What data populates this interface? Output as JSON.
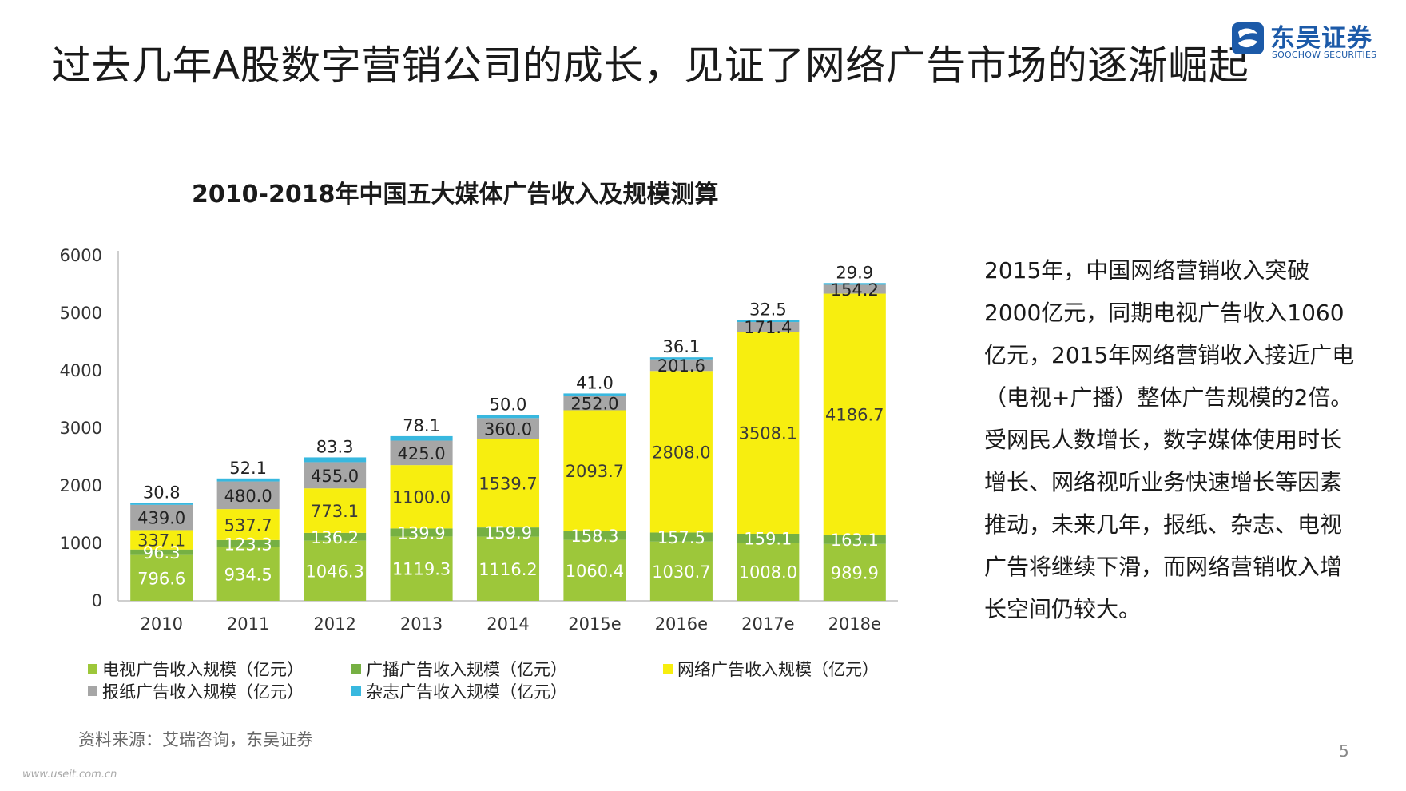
{
  "slide": {
    "title": "过去几年A股数字营销公司的成长，见证了网络广告市场的逐渐崛起",
    "page_number": "5",
    "source": "资料来源：艾瑞咨询，东吴证券",
    "watermark": "www.useit.com.cn"
  },
  "logo": {
    "name": "东吴证券",
    "subtitle": "SOOCHOW SECURITIES",
    "accent_color": "#1c5aa8",
    "mark_icon": "scs-logo-icon"
  },
  "side_text": "2015年，中国网络营销收入突破2000亿元，同期电视广告收入1060亿元，2015年网络营销收入接近广电（电视+广播）整体广告规模的2倍。受网民人数增长，数字媒体使用时长增长、网络视听业务快速增长等因素推动，未来几年，报纸、杂志、电视广告将继续下滑，而网络营销收入增长空间仍较大。",
  "chart_data": {
    "type": "bar",
    "stacked": true,
    "title": "2010-2018年中国五大媒体广告收入及规模测算",
    "categories": [
      "2010",
      "2011",
      "2012",
      "2013",
      "2014",
      "2015e",
      "2016e",
      "2017e",
      "2018e"
    ],
    "ylim": [
      0,
      6000
    ],
    "yticks": [
      "0",
      "1000",
      "2000",
      "3000",
      "4000",
      "5000",
      "6000"
    ],
    "xlabel": "",
    "ylabel": "",
    "grid": false,
    "legend_position": "bottom",
    "series": [
      {
        "name": "电视广告收入规模（亿元）",
        "color": "#9dc73a",
        "label_color": "#ffffff",
        "values": [
          796.6,
          934.5,
          1046.3,
          1119.3,
          1116.2,
          1060.4,
          1030.7,
          1008.0,
          989.9
        ],
        "labels": [
          "796.6",
          "934.5",
          "1046.3",
          "1119.3",
          "1116.2",
          "1060.4",
          "1030.7",
          "1008.0",
          "989.9"
        ]
      },
      {
        "name": "广播广告收入规模（亿元）",
        "color": "#76b043",
        "label_color": "#ffffff",
        "values": [
          96.3,
          123.3,
          136.2,
          139.9,
          159.9,
          158.3,
          157.5,
          159.1,
          163.1
        ],
        "labels": [
          "96.3",
          "123.3",
          "136.2",
          "139.9",
          "159.9",
          "158.3",
          "157.5",
          "159.1",
          "163.1"
        ]
      },
      {
        "name": "网络广告收入规模（亿元）",
        "color": "#f7ee0f",
        "label_color": "#3a3a3a",
        "values": [
          337.1,
          537.7,
          773.1,
          1100.0,
          1539.7,
          2093.7,
          2808.0,
          3508.1,
          4186.7
        ],
        "labels": [
          "337.1",
          "537.7",
          "773.1",
          "1100.0",
          "1539.7",
          "2093.7",
          "2808.0",
          "3508.1",
          "4186.7"
        ]
      },
      {
        "name": "报纸广告收入规模（亿元）",
        "color": "#a6a6a6",
        "label_color": "#222222",
        "values": [
          439.0,
          480.0,
          455.0,
          425.0,
          360.0,
          252.0,
          201.6,
          171.4,
          154.2
        ],
        "labels": [
          "439.0",
          "480.0",
          "455.0",
          "425.0",
          "360.0",
          "252.0",
          "201.6",
          "171.4",
          "154.2"
        ]
      },
      {
        "name": "杂志广告收入规模（亿元）",
        "color": "#38b8df",
        "label_color": "#222222",
        "values": [
          30.8,
          52.1,
          83.3,
          78.1,
          50.0,
          41.0,
          36.1,
          32.5,
          29.9
        ],
        "labels": [
          "30.8",
          "52.1",
          "83.3",
          "78.1",
          "50.0",
          "41.0",
          "36.1",
          "32.5",
          "29.9"
        ]
      }
    ]
  }
}
